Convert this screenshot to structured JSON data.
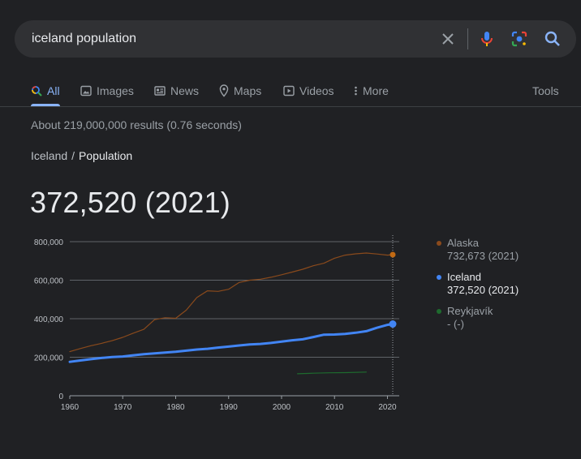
{
  "search": {
    "query": "iceland population"
  },
  "tabs": [
    {
      "label": "All",
      "icon": "search-icon",
      "active": true
    },
    {
      "label": "Images",
      "icon": "image-icon",
      "active": false
    },
    {
      "label": "News",
      "icon": "news-icon",
      "active": false
    },
    {
      "label": "Maps",
      "icon": "map-pin-icon",
      "active": false
    },
    {
      "label": "Videos",
      "icon": "video-icon",
      "active": false
    },
    {
      "label": "More",
      "icon": "more-vert-icon",
      "active": false
    }
  ],
  "tools_label": "Tools",
  "result_stats": "About 219,000,000 results (0.76 seconds)",
  "breadcrumb": {
    "parent": "Iceland",
    "separator": "/",
    "current": "Population"
  },
  "headline_value": "372,520 (2021)",
  "legend": [
    {
      "name": "Alaska",
      "value": "732,673 (2021)",
      "color": "#8a4a1c"
    },
    {
      "name": "Iceland",
      "value": "372,520 (2021)",
      "color": "#4285f4"
    },
    {
      "name": "Reykjavík",
      "value": "- (-)",
      "color": "#1e6b2e"
    }
  ],
  "chart_data": {
    "type": "line",
    "x_ticks": [
      1960,
      1970,
      1980,
      1990,
      2000,
      2010,
      2020
    ],
    "y_ticks": [
      0,
      200000,
      400000,
      600000,
      800000
    ],
    "y_tick_labels": [
      "0",
      "200,000",
      "400,000",
      "600,000",
      "800,000"
    ],
    "xlim": [
      1960,
      2021
    ],
    "ylim": [
      0,
      800000
    ],
    "series": [
      {
        "name": "Alaska",
        "color": "#8a4a1c",
        "width": 1.2,
        "highlight_last": true,
        "x": [
          1960,
          1962,
          1964,
          1966,
          1968,
          1970,
          1972,
          1974,
          1976,
          1978,
          1980,
          1982,
          1984,
          1986,
          1988,
          1990,
          1992,
          1994,
          1996,
          1998,
          2000,
          2002,
          2004,
          2006,
          2008,
          2010,
          2012,
          2014,
          2016,
          2018,
          2020,
          2021
        ],
        "y": [
          229000,
          245000,
          260000,
          272000,
          286000,
          303000,
          325000,
          345000,
          395000,
          405000,
          402000,
          444000,
          510000,
          545000,
          542000,
          553000,
          588000,
          600000,
          605000,
          615000,
          628000,
          642000,
          657000,
          675000,
          688000,
          714000,
          730000,
          737000,
          741000,
          736000,
          730000,
          732673
        ]
      },
      {
        "name": "Iceland",
        "color": "#4285f4",
        "width": 3,
        "highlight_last": true,
        "x": [
          1960,
          1962,
          1964,
          1966,
          1968,
          1970,
          1972,
          1974,
          1976,
          1978,
          1980,
          1982,
          1984,
          1986,
          1988,
          1990,
          1992,
          1994,
          1996,
          1998,
          2000,
          2002,
          2004,
          2006,
          2008,
          2010,
          2012,
          2014,
          2016,
          2018,
          2020,
          2021
        ],
        "y": [
          176000,
          183000,
          190000,
          196000,
          201000,
          204000,
          210000,
          216000,
          220000,
          224000,
          228000,
          234000,
          240000,
          244000,
          250000,
          255000,
          261000,
          266000,
          269000,
          274000,
          281000,
          288000,
          293000,
          305000,
          317000,
          318000,
          321000,
          327000,
          335000,
          353000,
          368000,
          372520
        ]
      },
      {
        "name": "Reykjavík",
        "color": "#1e6b2e",
        "width": 1.2,
        "highlight_last": false,
        "x": [
          2003,
          2006,
          2009,
          2012,
          2016
        ],
        "y": [
          114000,
          117000,
          119000,
          120000,
          123000
        ]
      }
    ]
  }
}
